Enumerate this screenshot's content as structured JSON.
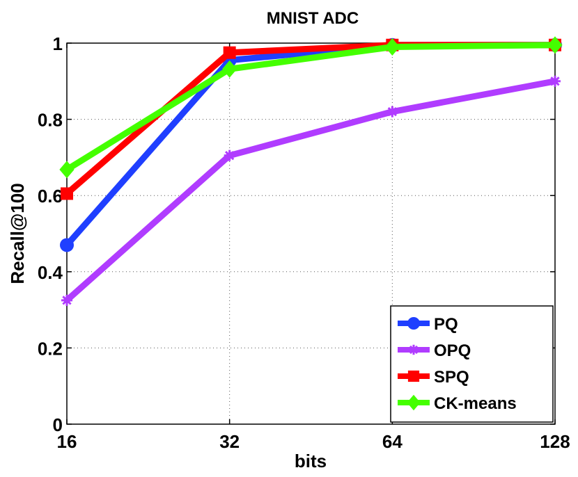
{
  "chart_data": {
    "type": "line",
    "title": "MNIST ADC",
    "xlabel": "bits",
    "ylabel": "Recall@100",
    "categories": [
      "16",
      "32",
      "64",
      "128"
    ],
    "yticks": [
      "0",
      "0.2",
      "0.4",
      "0.6",
      "0.8",
      "1"
    ],
    "ylim": [
      0,
      1
    ],
    "grid": true,
    "legend_position": "bottom-right",
    "series": [
      {
        "name": "PQ",
        "values": [
          0.47,
          0.955,
          0.995,
          0.995
        ],
        "color": "#1f3fff",
        "marker": "circle"
      },
      {
        "name": "OPQ",
        "values": [
          0.325,
          0.705,
          0.82,
          0.9
        ],
        "color": "#b03cff",
        "marker": "star"
      },
      {
        "name": "SPQ",
        "values": [
          0.605,
          0.975,
          0.995,
          0.995
        ],
        "color": "#ff0000",
        "marker": "square"
      },
      {
        "name": "CK-means",
        "values": [
          0.668,
          0.932,
          0.99,
          0.995
        ],
        "color": "#44ff00",
        "marker": "diamond"
      }
    ]
  }
}
